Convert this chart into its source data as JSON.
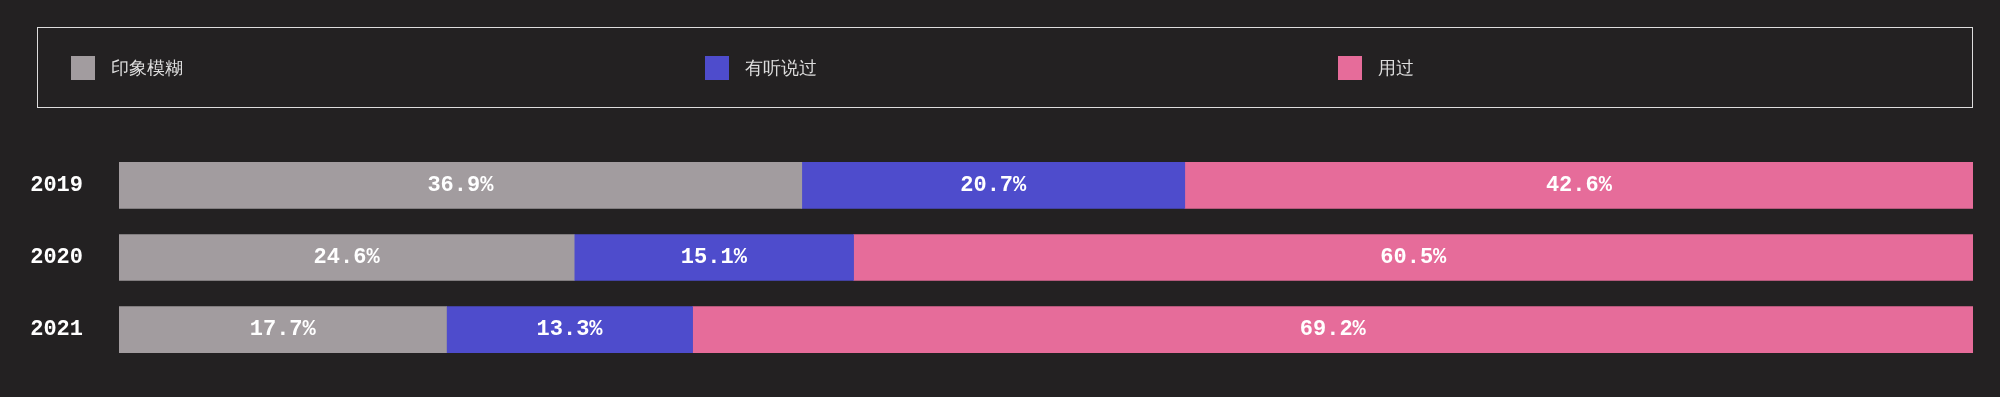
{
  "chart_data": {
    "type": "bar",
    "orientation": "horizontal",
    "stacked": true,
    "categories": [
      "2019",
      "2020",
      "2021"
    ],
    "series": [
      {
        "name": "印象模糊",
        "color": "#a29c9f",
        "values": [
          36.9,
          24.6,
          17.7
        ],
        "value_labels": [
          "36.9%",
          "24.6%",
          "17.7%"
        ]
      },
      {
        "name": "有听说过",
        "color": "#4e4ccc",
        "values": [
          20.7,
          15.1,
          13.3
        ],
        "value_labels": [
          "20.7%",
          "15.1%",
          "13.3%"
        ]
      },
      {
        "name": "用过",
        "color": "#e66c9a",
        "values": [
          42.6,
          60.5,
          69.2
        ],
        "value_labels": [
          "42.6%",
          "60.5%",
          "69.2%"
        ]
      }
    ],
    "xlim": [
      0,
      100.2
    ],
    "tick_labels": "y",
    "legend": "top"
  }
}
